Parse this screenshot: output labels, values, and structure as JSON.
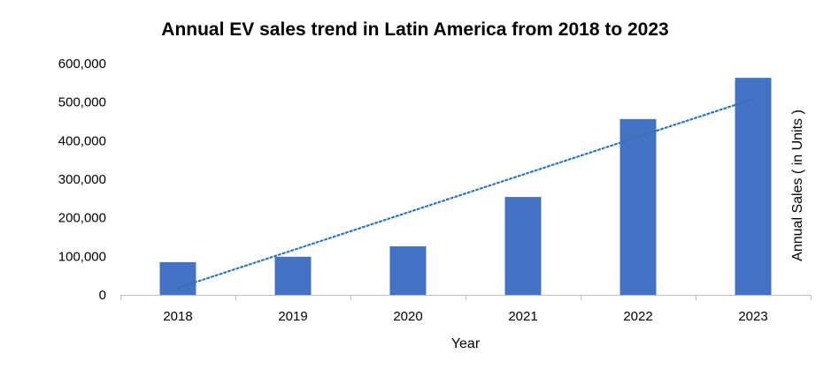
{
  "chart_data": {
    "type": "bar",
    "title": "Annual  EV sales trend in Latin  America  from 2018 to 2023",
    "xlabel": "Year",
    "ylabel": "Annual Sales ( in Units )",
    "categories": [
      "2018",
      "2019",
      "2020",
      "2021",
      "2022",
      "2023"
    ],
    "series": [
      {
        "values": [
          85000,
          99000,
          126000,
          254000,
          456000,
          563000
        ]
      }
    ],
    "trendline": {
      "type": "linear",
      "style": "dotted",
      "values": [
        18000,
        116000,
        214000,
        312000,
        410000,
        508000
      ]
    },
    "ylim": [
      0,
      600000
    ],
    "yticks": [
      "0",
      "100,000",
      "200,000",
      "300,000",
      "400,000",
      "500,000",
      "600,000"
    ],
    "ytick_values": [
      0,
      100000,
      200000,
      300000,
      400000,
      500000,
      600000
    ],
    "grid": false,
    "legend": "none",
    "colors": {
      "bar": "#4472C4",
      "trendline": "#2E75B6",
      "axis": "#BFBFBF"
    }
  }
}
